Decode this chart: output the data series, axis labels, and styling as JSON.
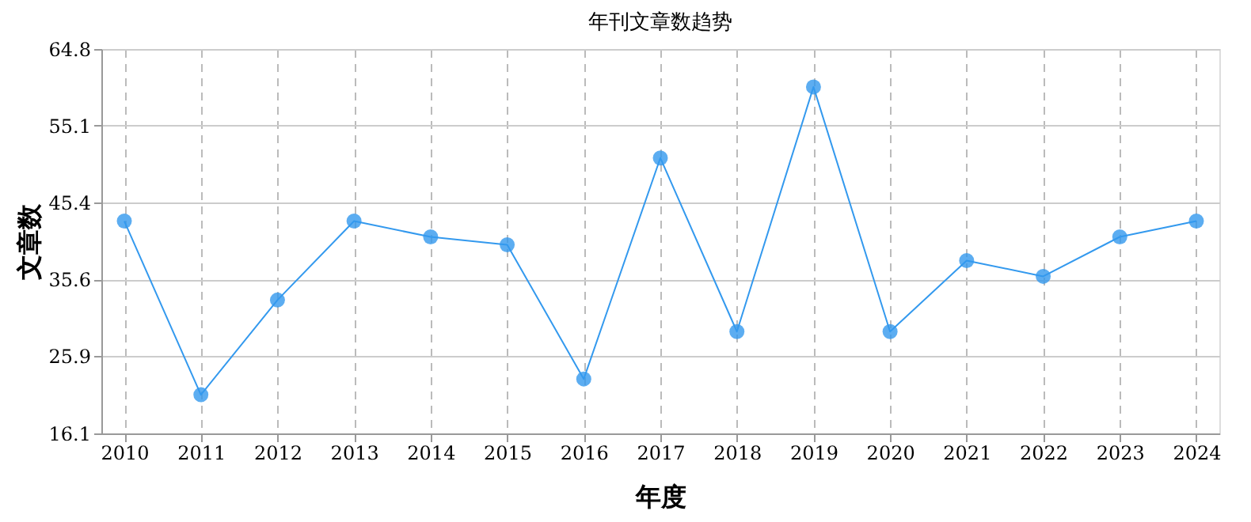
{
  "chart_data": {
    "type": "line",
    "title": "年刊文章数趋势",
    "xlabel": "年度",
    "ylabel": "文章数",
    "categories": [
      "2010",
      "2011",
      "2012",
      "2013",
      "2014",
      "2015",
      "2016",
      "2017",
      "2018",
      "2019",
      "2020",
      "2021",
      "2022",
      "2023",
      "2024"
    ],
    "series": [
      {
        "color": "#3399ee",
        "values": [
          43,
          21,
          33,
          43,
          41,
          40,
          23,
          51,
          29,
          60,
          29,
          38,
          36,
          41,
          43
        ]
      }
    ],
    "ylim": [
      16.1,
      64.8
    ],
    "yticks": [
      16.1,
      25.9,
      35.6,
      45.4,
      55.1,
      64.8
    ],
    "grid": true,
    "marker": "circle",
    "line_style": "solid"
  }
}
